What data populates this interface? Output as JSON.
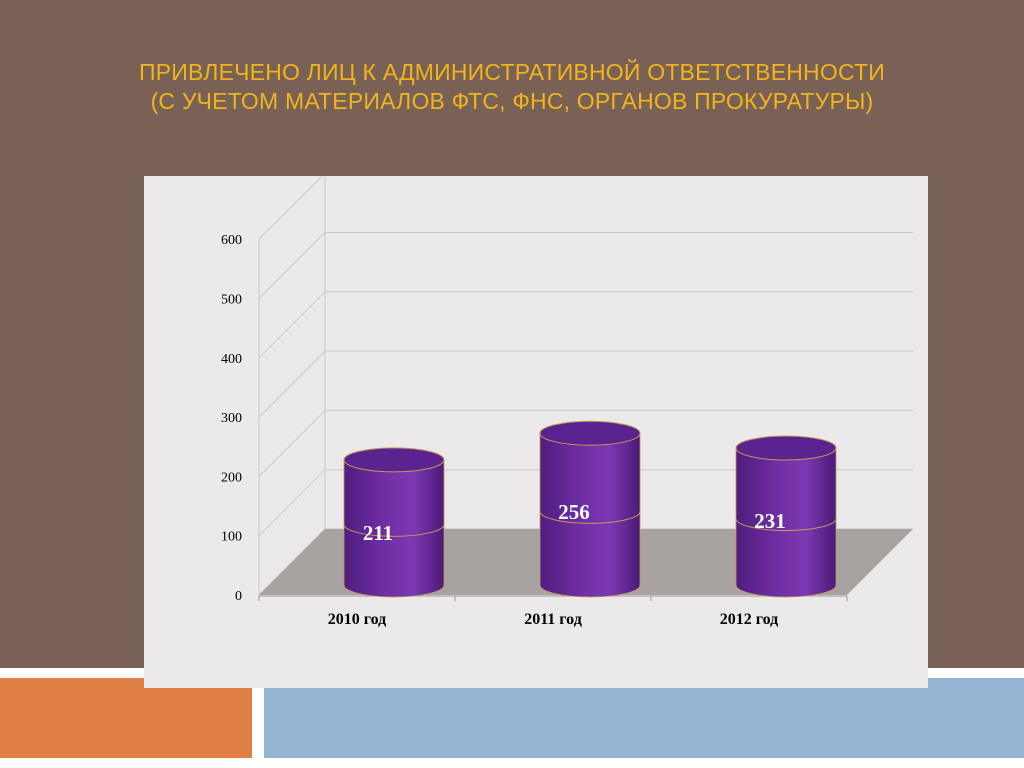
{
  "slide": {
    "title_line1": "ПРИВЛЕЧЕНО ЛИЦ К АДМИНИСТРАТИВНОЙ ОТВЕТСТВЕННОСТИ",
    "title_line2": "(С УЧЕТОМ МАТЕРИАЛОВ ФТС, ФНС, ОРГАНОВ ПРОКУРАТУРЫ)"
  },
  "colors": {
    "background": "#7a6155",
    "title": "#f0b41c",
    "cylinder": "#7230a6",
    "cylinder_top": "#5a2390",
    "cylinder_outline": "#c49a5a",
    "floor": "#a8a3a1",
    "accent_orange": "#e07f45",
    "accent_blue": "#93b4d3"
  },
  "chart_data": {
    "type": "bar",
    "style": "3d-cylinder",
    "categories": [
      "2010 год",
      "2011 год",
      "2012 год"
    ],
    "values": [
      211,
      256,
      231
    ],
    "value_labels": [
      "211",
      "256",
      "231"
    ],
    "y_ticks": [
      "0",
      "100",
      "200",
      "300",
      "400",
      "500",
      "600"
    ],
    "ylim": [
      0,
      600
    ],
    "grid": true,
    "legend": "none"
  }
}
